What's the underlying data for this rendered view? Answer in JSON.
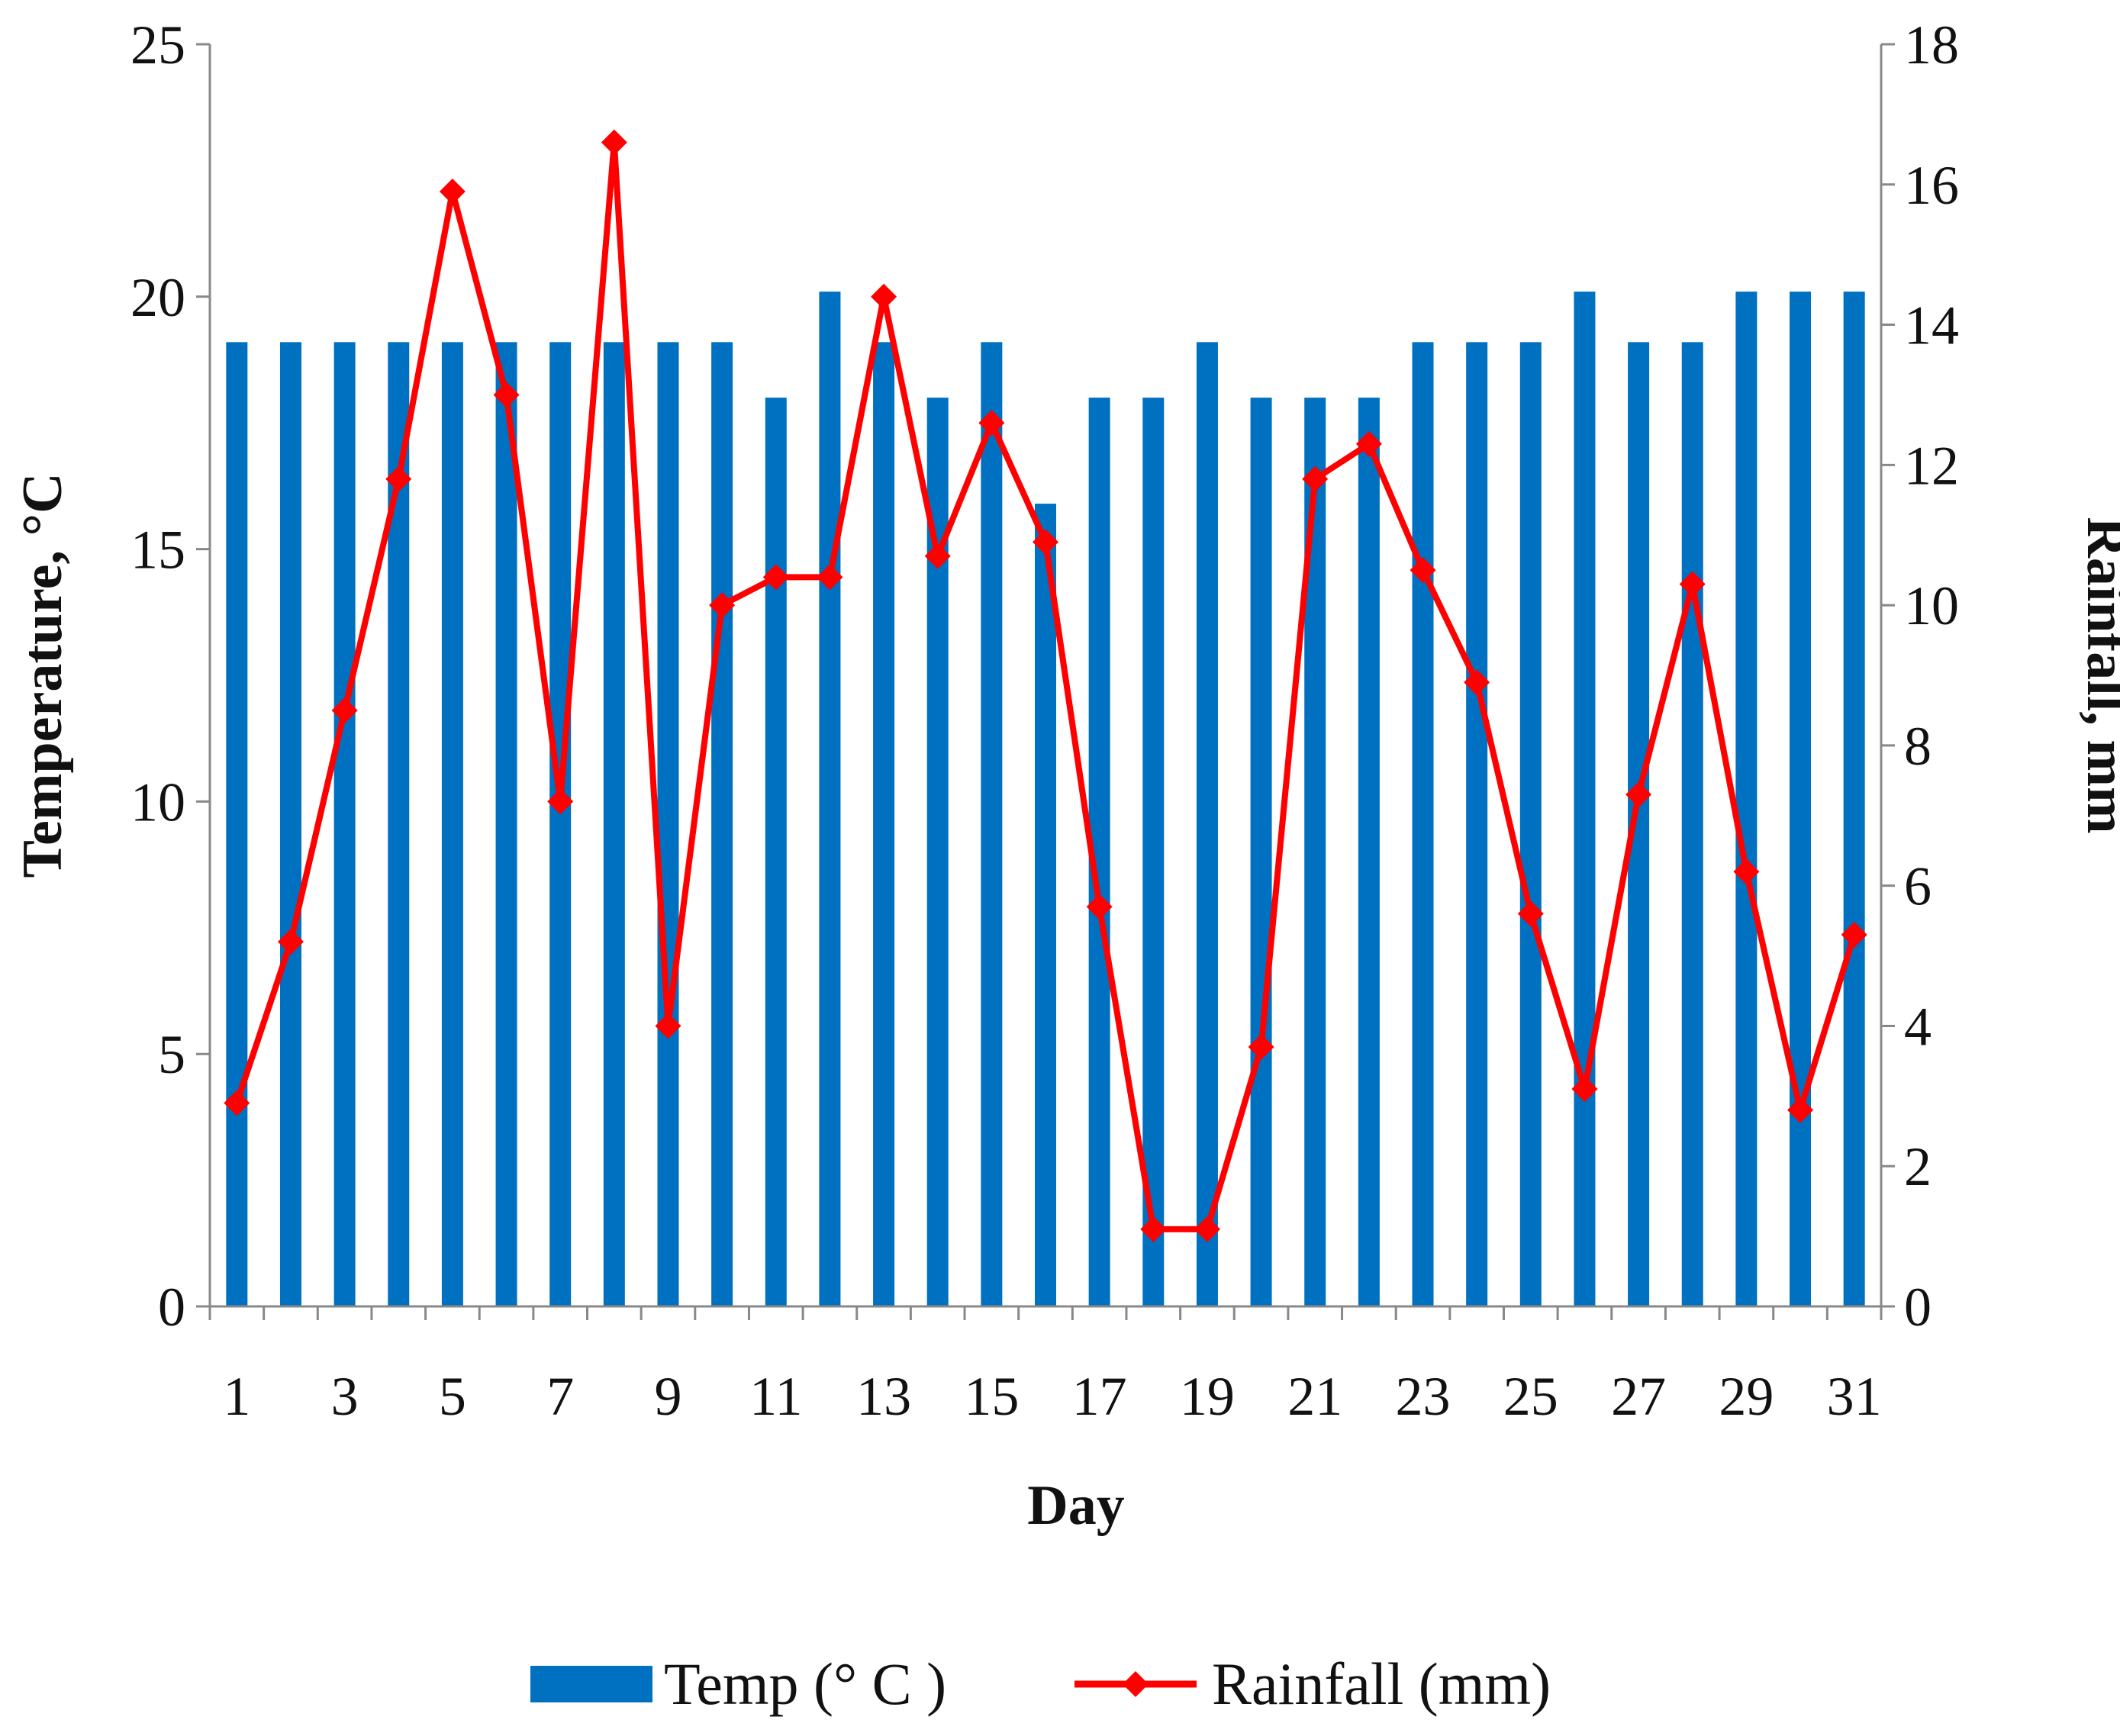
{
  "chart_data": {
    "type": "bar",
    "title": "",
    "xlabel": "Day",
    "ylabel": "Temperature, °C",
    "y2label": "Rainfall, mm",
    "ylim": [
      0,
      25
    ],
    "y2lim": [
      0,
      18
    ],
    "yticks": [
      "0",
      "5",
      "10",
      "15",
      "20",
      "25"
    ],
    "y2ticks": [
      "0",
      "2",
      "4",
      "6",
      "8",
      "10",
      "12",
      "14",
      "16",
      "18"
    ],
    "x": [
      1,
      2,
      3,
      4,
      5,
      6,
      7,
      8,
      9,
      10,
      11,
      12,
      13,
      14,
      15,
      16,
      17,
      18,
      19,
      20,
      21,
      22,
      23,
      24,
      25,
      26,
      27,
      28,
      29,
      30,
      31
    ],
    "xticks": [
      "1",
      "3",
      "5",
      "7",
      "9",
      "11",
      "13",
      "15",
      "17",
      "19",
      "21",
      "23",
      "25",
      "27",
      "29",
      "31"
    ],
    "series": [
      {
        "name": "Temp (° C )",
        "type": "bar",
        "axis": "left",
        "color": "#0070C0",
        "values": [
          19.1,
          19.1,
          19.1,
          19.1,
          19.1,
          19.1,
          19.1,
          19.1,
          19.1,
          19.1,
          18.0,
          20.1,
          19.1,
          18.0,
          19.1,
          15.9,
          18.0,
          18.0,
          19.1,
          18.0,
          18.0,
          18.0,
          19.1,
          19.1,
          19.1,
          20.1,
          19.1,
          19.1,
          20.1,
          20.1,
          20.1
        ]
      },
      {
        "name": "Rainfall (mm)",
        "type": "line",
        "axis": "right",
        "color": "#FF0000",
        "marker": "diamond",
        "values": [
          2.9,
          5.2,
          8.5,
          11.8,
          15.9,
          13.0,
          7.2,
          16.6,
          4.0,
          10.0,
          10.4,
          10.4,
          14.4,
          10.7,
          12.6,
          10.9,
          5.7,
          1.1,
          1.1,
          3.7,
          11.8,
          12.3,
          10.5,
          8.9,
          5.6,
          3.1,
          7.3,
          10.3,
          6.2,
          2.8,
          5.3
        ]
      }
    ],
    "legend": "bottom"
  }
}
